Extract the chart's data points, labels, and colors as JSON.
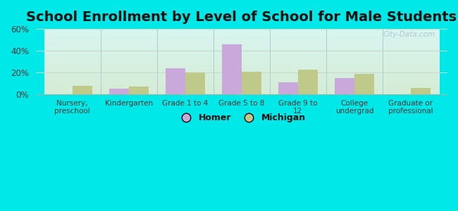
{
  "title": "School Enrollment by Level of School for Male Students",
  "categories": [
    "Nursery,\npreschool",
    "Kindergarten",
    "Grade 1 to 4",
    "Grade 5 to 8",
    "Grade 9 to\n12",
    "College\nundergrad",
    "Graduate or\nprofessional"
  ],
  "homer_values": [
    0,
    5,
    24,
    46,
    11,
    15,
    0
  ],
  "michigan_values": [
    8,
    7,
    20,
    21,
    23,
    19,
    6
  ],
  "homer_color": "#C9A8DC",
  "michigan_color": "#BFC98A",
  "bar_width": 0.35,
  "ylim": [
    0,
    60
  ],
  "yticks": [
    0,
    20,
    40,
    60
  ],
  "ytick_labels": [
    "0%",
    "20%",
    "40%",
    "60%"
  ],
  "outer_bg": "#00e8e8",
  "plot_bg_topleft": "#d8f5f0",
  "plot_bg_topright": "#e8f5f5",
  "plot_bg_bottomleft": "#dceedd",
  "plot_bg_bottomright": "#e5f0e5",
  "title_fontsize": 14,
  "legend_labels": [
    "Homer",
    "Michigan"
  ],
  "watermark": "City-Data.com",
  "vline_color": "#aacccc",
  "grid_color": "#c8d8c8",
  "spine_color": "#99bbaa"
}
